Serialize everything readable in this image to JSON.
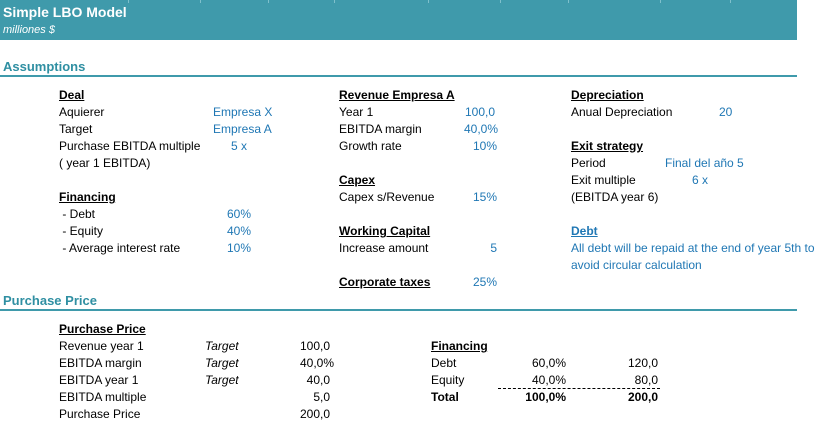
{
  "header": {
    "title": "Simple LBO Model",
    "subtitle": "milliones $"
  },
  "sections": {
    "assumptions": "Assumptions",
    "purchase_price": "Purchase Price"
  },
  "deal": {
    "title": "Deal",
    "acquirer_label": "Aquierer",
    "acquirer_value": "Empresa X",
    "target_label": "Target",
    "target_value": "Empresa A",
    "multiple_label": "Purchase EBITDA multiple",
    "multiple_value": "5 x",
    "multiple_note": "( year 1 EBITDA)"
  },
  "financing": {
    "title": "Financing",
    "debt_label": " - Debt",
    "debt_value": "60%",
    "equity_label": " - Equity",
    "equity_value": "40%",
    "rate_label": " - Average interest rate",
    "rate_value": "10%"
  },
  "revenue": {
    "title": "Revenue Empresa A",
    "year1_label": "Year 1",
    "year1_value": "100,0",
    "margin_label": "EBITDA margin",
    "margin_value": "40,0%",
    "growth_label": "Growth rate",
    "growth_value": "10%"
  },
  "capex": {
    "title": "Capex",
    "label": "Capex s/Revenue",
    "value": "15%"
  },
  "working_capital": {
    "title": "Working Capital",
    "label": "Increase amount",
    "value": "5"
  },
  "corporate_taxes": {
    "title": "Corporate taxes",
    "value": "25%"
  },
  "depreciation": {
    "title": "Depreciation",
    "label": "Anual Depreciation",
    "value": "20"
  },
  "exit": {
    "title": "Exit strategy",
    "period_label": "Period",
    "period_value": "Final del año 5",
    "multiple_label": "Exit multiple",
    "multiple_value": "6 x",
    "note": "(EBITDA year 6)"
  },
  "debt_note": {
    "title": "Debt",
    "line1": "All debt will be repaid at the end of year 5th to",
    "line2": "avoid circular calculation"
  },
  "pp": {
    "title": "Purchase Price",
    "rows": [
      {
        "label": "Revenue year 1",
        "tag": "Target",
        "value": "100,0"
      },
      {
        "label": "EBITDA margin",
        "tag": "Target",
        "value": "40,0%"
      },
      {
        "label": "EBITDA year 1",
        "tag": "Target",
        "value": "40,0"
      },
      {
        "label": "EBITDA multiple",
        "tag": "",
        "value": "5,0"
      },
      {
        "label": "Purchase Price",
        "tag": "",
        "value": "200,0"
      }
    ]
  },
  "pp_financing": {
    "title": "Financing",
    "rows": [
      {
        "label": "Debt",
        "pct": "60,0%",
        "amount": "120,0"
      },
      {
        "label": "Equity",
        "pct": "40,0%",
        "amount": "80,0"
      },
      {
        "label": "Total",
        "pct": "100,0%",
        "amount": "200,0"
      }
    ]
  }
}
